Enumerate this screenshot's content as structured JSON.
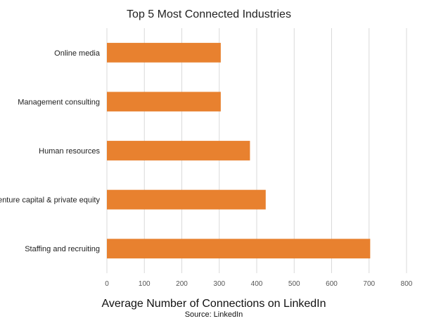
{
  "chart_data": {
    "type": "bar",
    "orientation": "horizontal",
    "title": "Top 5 Most Connected Industries",
    "xlabel": "Average Number of Connections on LinkedIn",
    "source": "Source: LinkedIn",
    "categories": [
      "Online media",
      "Management consulting",
      "Human resources",
      "Venture capital & private equity",
      "Staffing and recruiting"
    ],
    "values": [
      304,
      304,
      382,
      424,
      703
    ],
    "xlim": [
      0,
      800
    ],
    "xticks": [
      0,
      100,
      200,
      300,
      400,
      500,
      600,
      700,
      800
    ],
    "grid": "vertical",
    "bar_color": "#E8812F",
    "grid_color": "#D9D9D9"
  }
}
